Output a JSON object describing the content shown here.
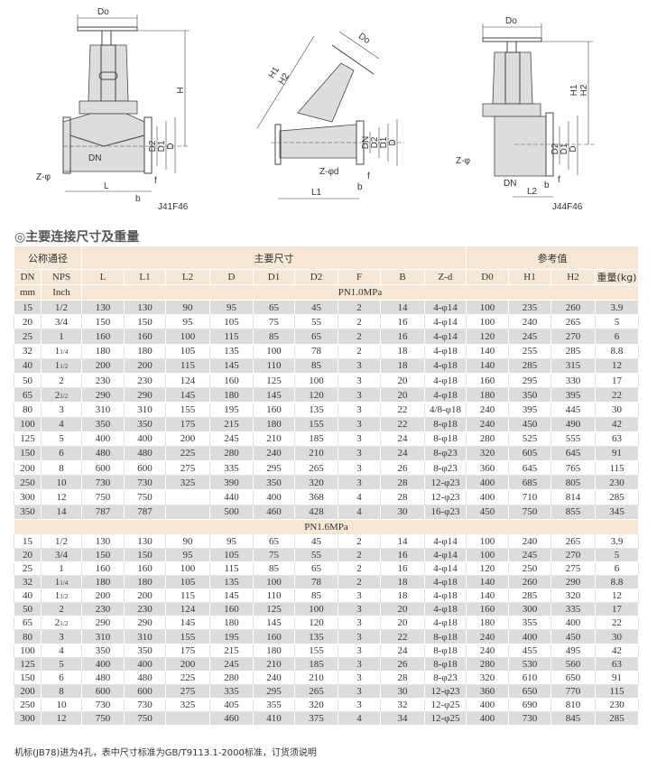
{
  "drawings": {
    "j41": {
      "model": "J41F46",
      "labels": [
        "Do",
        "H",
        "D2",
        "D1",
        "D",
        "DN",
        "Z-φ",
        "L",
        "b",
        "f"
      ]
    },
    "j45": {
      "labels": [
        "Do",
        "H1",
        "H2",
        "DN",
        "D2",
        "D1",
        "D",
        "Z-φd",
        "L1",
        "b",
        "f"
      ]
    },
    "j44": {
      "model": "J44F46",
      "labels": [
        "Do",
        "H1",
        "H2",
        "D2",
        "D1",
        "D",
        "Z-φ",
        "DN",
        "L2",
        "b",
        "f"
      ]
    }
  },
  "section_title": "◎主要连接尺寸及重量",
  "table": {
    "group_headers": [
      "公称通径",
      "主要尺寸",
      "参考值"
    ],
    "dn_header": "DN",
    "dn_unit": "mm",
    "nps_header": "NPS",
    "nps_unit": "Inch",
    "columns": [
      "L",
      "L1",
      "L2",
      "D",
      "D1",
      "D2",
      "F",
      "B",
      "Z-d",
      "D0",
      "H1",
      "H2",
      "重量(kg)"
    ],
    "pn10": {
      "label": "PN1.0MPa",
      "rows": [
        [
          "15",
          "1/2",
          "130",
          "130",
          "90",
          "95",
          "65",
          "45",
          "2",
          "14",
          "4-φ14",
          "100",
          "235",
          "260",
          "3.9"
        ],
        [
          "20",
          "3/4",
          "150",
          "150",
          "95",
          "105",
          "75",
          "55",
          "2",
          "16",
          "4-φ14",
          "100",
          "240",
          "265",
          "5"
        ],
        [
          "25",
          "1",
          "160",
          "160",
          "100",
          "115",
          "85",
          "65",
          "2",
          "16",
          "4-φ14",
          "120",
          "245",
          "270",
          "6"
        ],
        [
          "32",
          "1 1/4",
          "180",
          "180",
          "105",
          "135",
          "100",
          "78",
          "2",
          "18",
          "4-φ18",
          "140",
          "255",
          "285",
          "8.8"
        ],
        [
          "40",
          "1 1/2",
          "200",
          "200",
          "115",
          "145",
          "110",
          "85",
          "3",
          "18",
          "4-φ18",
          "140",
          "285",
          "315",
          "12"
        ],
        [
          "50",
          "2",
          "230",
          "230",
          "124",
          "160",
          "125",
          "100",
          "3",
          "20",
          "4-φ18",
          "160",
          "295",
          "330",
          "17"
        ],
        [
          "65",
          "2 1/2",
          "290",
          "290",
          "145",
          "180",
          "145",
          "120",
          "3",
          "20",
          "4-φ18",
          "180",
          "350",
          "395",
          "22"
        ],
        [
          "80",
          "3",
          "310",
          "310",
          "155",
          "195",
          "160",
          "135",
          "3",
          "22",
          "4/8-φ18",
          "240",
          "395",
          "445",
          "30"
        ],
        [
          "100",
          "4",
          "350",
          "350",
          "175",
          "215",
          "180",
          "155",
          "3",
          "22",
          "8-φ18",
          "240",
          "450",
          "490",
          "42"
        ],
        [
          "125",
          "5",
          "400",
          "400",
          "200",
          "245",
          "210",
          "185",
          "3",
          "24",
          "8-φ18",
          "280",
          "525",
          "555",
          "63"
        ],
        [
          "150",
          "6",
          "480",
          "480",
          "225",
          "280",
          "240",
          "210",
          "3",
          "24",
          "8-φ23",
          "320",
          "605",
          "645",
          "91"
        ],
        [
          "200",
          "8",
          "600",
          "600",
          "275",
          "335",
          "295",
          "265",
          "3",
          "26",
          "8-φ23",
          "360",
          "645",
          "765",
          "115"
        ],
        [
          "250",
          "10",
          "730",
          "730",
          "325",
          "390",
          "350",
          "320",
          "3",
          "28",
          "12-φ23",
          "400",
          "685",
          "805",
          "230"
        ],
        [
          "300",
          "12",
          "750",
          "750",
          "",
          "440",
          "400",
          "368",
          "4",
          "28",
          "12-φ23",
          "400",
          "710",
          "814",
          "285"
        ],
        [
          "350",
          "14",
          "787",
          "787",
          "",
          "500",
          "460",
          "428",
          "4",
          "30",
          "16-φ23",
          "450",
          "750",
          "855",
          "345"
        ]
      ]
    },
    "pn16": {
      "label": "PN1.6MPa",
      "rows": [
        [
          "15",
          "1/2",
          "130",
          "130",
          "90",
          "95",
          "65",
          "45",
          "2",
          "14",
          "4-φ14",
          "100",
          "240",
          "265",
          "3.9"
        ],
        [
          "20",
          "3/4",
          "150",
          "150",
          "95",
          "105",
          "75",
          "55",
          "2",
          "16",
          "4-φ14",
          "100",
          "245",
          "270",
          "5"
        ],
        [
          "25",
          "1",
          "160",
          "160",
          "100",
          "115",
          "85",
          "65",
          "2",
          "16",
          "4-φ14",
          "120",
          "250",
          "275",
          "6"
        ],
        [
          "32",
          "1 1/4",
          "180",
          "180",
          "105",
          "135",
          "100",
          "78",
          "2",
          "18",
          "4-φ18",
          "140",
          "260",
          "290",
          "8.8"
        ],
        [
          "40",
          "1 1/2",
          "200",
          "200",
          "115",
          "145",
          "110",
          "85",
          "3",
          "18",
          "4-φ18",
          "140",
          "285",
          "320",
          "12"
        ],
        [
          "50",
          "2",
          "230",
          "230",
          "124",
          "160",
          "125",
          "100",
          "3",
          "20",
          "4-φ18",
          "160",
          "300",
          "335",
          "17"
        ],
        [
          "65",
          "2 1/2",
          "290",
          "290",
          "145",
          "180",
          "145",
          "120",
          "3",
          "20",
          "4-φ18",
          "180",
          "355",
          "400",
          "22"
        ],
        [
          "80",
          "3",
          "310",
          "310",
          "155",
          "195",
          "160",
          "135",
          "3",
          "22",
          "8-φ18",
          "240",
          "400",
          "450",
          "30"
        ],
        [
          "100",
          "4",
          "350",
          "350",
          "175",
          "215",
          "180",
          "155",
          "3",
          "24",
          "8-φ18",
          "240",
          "455",
          "495",
          "42"
        ],
        [
          "125",
          "5",
          "400",
          "400",
          "200",
          "245",
          "210",
          "185",
          "3",
          "26",
          "8-φ18",
          "280",
          "530",
          "560",
          "63"
        ],
        [
          "150",
          "6",
          "480",
          "480",
          "225",
          "280",
          "240",
          "210",
          "3",
          "28",
          "8-φ23",
          "320",
          "610",
          "650",
          "91"
        ],
        [
          "200",
          "8",
          "600",
          "600",
          "275",
          "335",
          "295",
          "265",
          "3",
          "30",
          "12-φ23",
          "360",
          "650",
          "770",
          "115"
        ],
        [
          "250",
          "10",
          "730",
          "730",
          "325",
          "405",
          "355",
          "320",
          "3",
          "32",
          "12-φ25",
          "400",
          "690",
          "810",
          "230"
        ],
        [
          "300",
          "12",
          "750",
          "750",
          "",
          "460",
          "410",
          "375",
          "4",
          "34",
          "12-φ25",
          "400",
          "730",
          "845",
          "285"
        ]
      ]
    }
  },
  "footnote": "机标(JB78)进为4孔，表中尺寸标准为GB/T9113.1-2000标准，订货须说明"
}
